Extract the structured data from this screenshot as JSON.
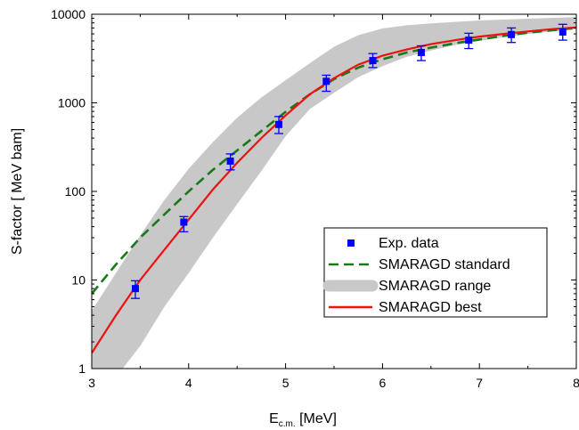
{
  "chart_data": {
    "type": "line",
    "xlabel_main": "E",
    "xlabel_sub": "c.m.",
    "xlabel_unit": " [MeV]",
    "ylabel": "S-factor [ MeV bam]",
    "xlim": [
      3,
      8
    ],
    "ylim": [
      1,
      10000
    ],
    "yscale": "log",
    "x_ticks": [
      "3",
      "4",
      "5",
      "6",
      "7",
      "8"
    ],
    "y_ticks": [
      "1",
      "10",
      "100",
      "1000",
      "10000"
    ],
    "legend_position": "center-right",
    "series": [
      {
        "name": "Exp. data",
        "kind": "scatter",
        "color": "#0000ff",
        "points": [
          {
            "x": 3.45,
            "y": 8.0,
            "lo": 6.2,
            "hi": 9.8
          },
          {
            "x": 3.95,
            "y": 45,
            "lo": 35,
            "hi": 52
          },
          {
            "x": 4.43,
            "y": 220,
            "lo": 175,
            "hi": 265
          },
          {
            "x": 4.93,
            "y": 570,
            "lo": 450,
            "hi": 700
          },
          {
            "x": 5.42,
            "y": 1750,
            "lo": 1350,
            "hi": 2050
          },
          {
            "x": 5.9,
            "y": 3000,
            "lo": 2500,
            "hi": 3600
          },
          {
            "x": 6.4,
            "y": 3700,
            "lo": 3000,
            "hi": 4400
          },
          {
            "x": 6.89,
            "y": 5100,
            "lo": 4100,
            "hi": 6100
          },
          {
            "x": 7.33,
            "y": 5900,
            "lo": 4800,
            "hi": 7000
          },
          {
            "x": 7.86,
            "y": 6300,
            "lo": 5100,
            "hi": 7700
          }
        ]
      },
      {
        "name": "SMARAGD standard",
        "kind": "line",
        "color": "#1a7a1a",
        "dashed": true,
        "x": [
          3.0,
          3.25,
          3.5,
          3.75,
          4.0,
          4.25,
          4.5,
          4.75,
          5.0,
          5.25,
          5.5,
          5.75,
          6.0,
          6.25,
          6.5,
          6.75,
          7.0,
          7.25,
          7.5,
          7.75,
          8.0
        ],
        "y": [
          7,
          15,
          30,
          55,
          100,
          175,
          290,
          480,
          790,
          1250,
          1850,
          2500,
          3100,
          3700,
          4200,
          4700,
          5200,
          5700,
          6200,
          6600,
          7000
        ]
      },
      {
        "name": "SMARAGD range",
        "kind": "band",
        "color": "#c8c8c8",
        "x": [
          3.0,
          3.25,
          3.5,
          3.75,
          4.0,
          4.25,
          4.5,
          4.75,
          5.0,
          5.25,
          5.5,
          5.75,
          6.0,
          6.25,
          6.5,
          6.75,
          7.0,
          7.25,
          7.5,
          7.75,
          8.0
        ],
        "lower": [
          0.6,
          0.8,
          1.8,
          5,
          12,
          30,
          72,
          170,
          420,
          850,
          1300,
          1950,
          2600,
          3300,
          3900,
          4500,
          5000,
          5500,
          6000,
          6400,
          6800
        ],
        "upper": [
          4.5,
          12,
          32,
          80,
          180,
          360,
          680,
          1150,
          1800,
          2800,
          4300,
          5800,
          6900,
          7500,
          7900,
          8200,
          8500,
          8700,
          8900,
          9100,
          9300
        ]
      },
      {
        "name": "SMARAGD best",
        "kind": "line",
        "color": "#ee1111",
        "dashed": false,
        "x": [
          3.0,
          3.25,
          3.5,
          3.75,
          4.0,
          4.25,
          4.5,
          4.75,
          5.0,
          5.25,
          5.5,
          5.75,
          6.0,
          6.25,
          6.5,
          6.75,
          7.0,
          7.25,
          7.5,
          7.75,
          8.0
        ],
        "y": [
          1.5,
          4,
          10,
          22,
          48,
          105,
          210,
          400,
          720,
          1250,
          1900,
          2700,
          3400,
          4000,
          4600,
          5100,
          5600,
          6000,
          6400,
          6800,
          7100
        ]
      }
    ]
  }
}
